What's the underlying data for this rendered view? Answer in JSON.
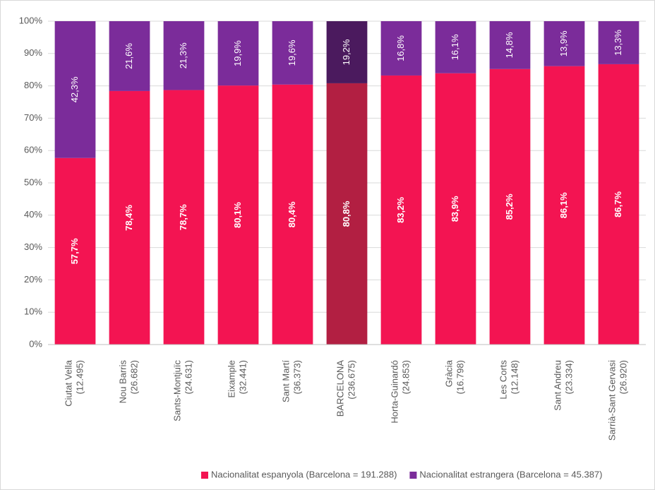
{
  "chart_data": {
    "type": "stacked_bar",
    "categories": [
      "Ciutat Vella\n(12.495)",
      "Nou Barris\n(26.682)",
      "Sants-Montjuïc\n(24.631)",
      "Eixample\n(32.441)",
      "Sant Martí\n(36.373)",
      "BARCELONA\n(236.675)",
      "Horta-Guinardó\n(24.853)",
      "Gràcia\n(16.798)",
      "Les Corts\n(12.148)",
      "Sant Andreu\n(23.334)",
      "Sarrià-Sant Gervasi\n(26.920)"
    ],
    "series": [
      {
        "name": "Nacionalitat espanyola (Barcelona = 191.288)",
        "color": "#f31452",
        "colors": [
          "#f31452",
          "#f31452",
          "#f31452",
          "#f31452",
          "#f31452",
          "#b21f42",
          "#f31452",
          "#f31452",
          "#f31452",
          "#f31452",
          "#f31452"
        ],
        "values": [
          57.7,
          78.4,
          78.7,
          80.1,
          80.4,
          80.8,
          83.2,
          83.9,
          85.2,
          86.1,
          86.7
        ],
        "value_labels": [
          "57,7%",
          "78,4%",
          "78,7%",
          "80,1%",
          "80,4%",
          "80,8%",
          "83,2%",
          "83,9%",
          "85,2%",
          "86,1%",
          "86,7%"
        ]
      },
      {
        "name": "Nacionalitat estrangera (Barcelona = 45.387)",
        "color": "#7b2c9a",
        "colors": [
          "#7b2c9a",
          "#7b2c9a",
          "#7b2c9a",
          "#7b2c9a",
          "#7b2c9a",
          "#4b1a5e",
          "#7b2c9a",
          "#7b2c9a",
          "#7b2c9a",
          "#7b2c9a",
          "#7b2c9a"
        ],
        "values": [
          42.3,
          21.6,
          21.3,
          19.9,
          19.6,
          19.2,
          16.8,
          16.1,
          14.8,
          13.9,
          13.3
        ],
        "value_labels": [
          "42,3%",
          "21,6%",
          "21,3%",
          "19,9%",
          "19,6%",
          "19,2%",
          "16,8%",
          "16,1%",
          "14,8%",
          "13,9%",
          "13,3%"
        ]
      }
    ],
    "ylim": [
      0,
      100
    ],
    "yticks": [
      {
        "value": 0,
        "label": "0%"
      },
      {
        "value": 10,
        "label": "10%"
      },
      {
        "value": 20,
        "label": "20%"
      },
      {
        "value": 30,
        "label": "30%"
      },
      {
        "value": 40,
        "label": "40%"
      },
      {
        "value": 50,
        "label": "50%"
      },
      {
        "value": 60,
        "label": "60%"
      },
      {
        "value": 70,
        "label": "70%"
      },
      {
        "value": 80,
        "label": "80%"
      },
      {
        "value": 90,
        "label": "90%"
      },
      {
        "value": 100,
        "label": "100%"
      }
    ],
    "grid": true,
    "legend": "bottom"
  }
}
